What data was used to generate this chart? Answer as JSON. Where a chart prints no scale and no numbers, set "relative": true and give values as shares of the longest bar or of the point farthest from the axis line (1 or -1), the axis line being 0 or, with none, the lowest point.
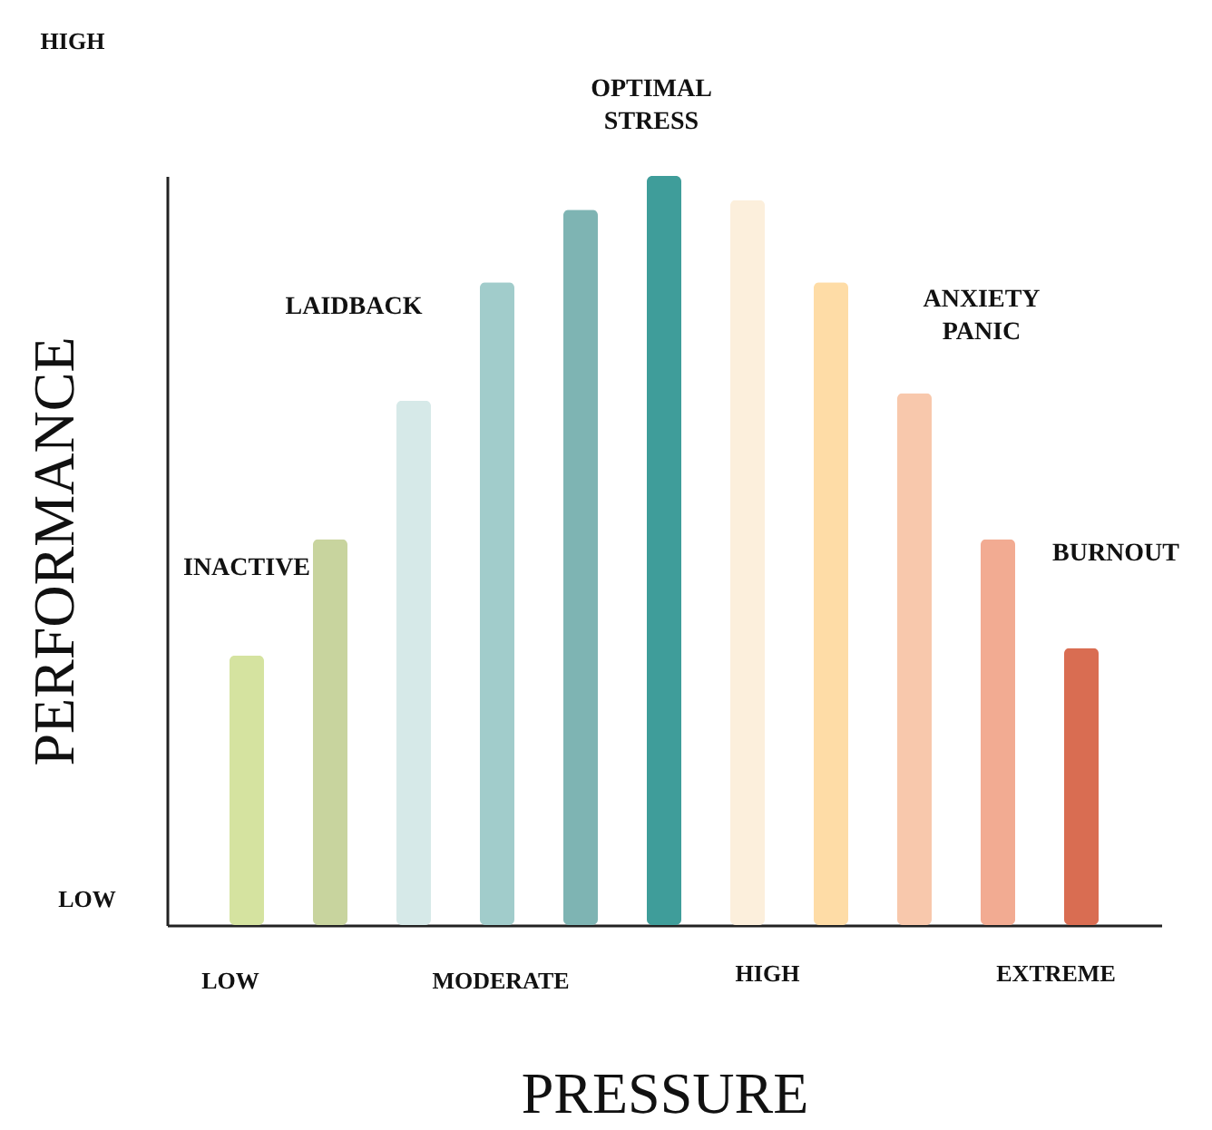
{
  "chart_data": {
    "type": "bar",
    "relative": true,
    "xlabel": "PRESSURE",
    "ylabel": "PERFORMANCE",
    "categories": [
      null,
      null,
      null,
      null,
      null,
      null,
      null,
      null,
      null,
      null,
      null
    ],
    "values": [
      0.36,
      0.515,
      0.7,
      0.858,
      0.955,
      1,
      0.968,
      0.858,
      0.71,
      0.515,
      0.37
    ],
    "colors": [
      "#d5e3a0",
      "#c8d49e",
      "#d6e9e8",
      "#a1cccb",
      "#7eb4b3",
      "#3f9d9a",
      "#fcefdc",
      "#fedca6",
      "#f8c8ac",
      "#f2ab92",
      "#d96d52"
    ],
    "annotations": [
      "HIGH",
      "LOW",
      "LOW",
      "MODERATE",
      "HIGH",
      "EXTREME",
      "INACTIVE",
      "LAIDBACK",
      "OPTIMAL STRESS",
      "ANXIETY PANIC",
      "BURNOUT"
    ]
  }
}
